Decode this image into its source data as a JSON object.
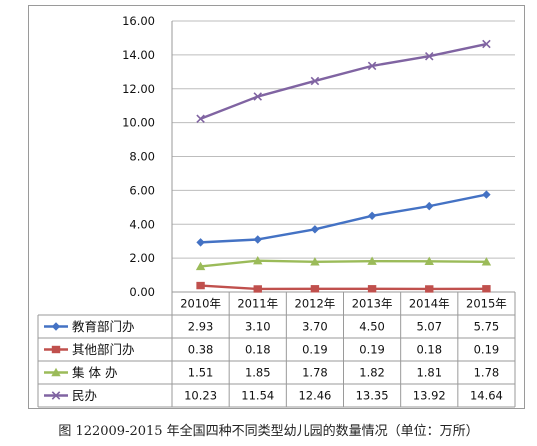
{
  "caption": "图 122009-2015 年全国四种不同类型幼儿园的数量情况（单位：万所）",
  "chart_data": {
    "type": "line",
    "title": "",
    "xlabel": "",
    "ylabel": "",
    "categories": [
      "2010年",
      "2011年",
      "2012年",
      "2013年",
      "2014年",
      "2015年"
    ],
    "ylim": [
      0,
      16
    ],
    "yticks": [
      "0.00",
      "2.00",
      "4.00",
      "6.00",
      "8.00",
      "10.00",
      "12.00",
      "14.00",
      "16.00"
    ],
    "grid": true,
    "legend_placement": "table-left",
    "series": [
      {
        "name": "教育部门办",
        "color": "#4472C4",
        "marker": "diamond",
        "values": [
          2.93,
          3.1,
          3.7,
          4.5,
          5.07,
          5.75
        ],
        "labels": [
          "2.93",
          "3.10",
          "3.70",
          "4.50",
          "5.07",
          "5.75"
        ]
      },
      {
        "name": "其他部门办",
        "color": "#C0504D",
        "marker": "square",
        "values": [
          0.38,
          0.18,
          0.19,
          0.19,
          0.18,
          0.19
        ],
        "labels": [
          "0.38",
          "0.18",
          "0.19",
          "0.19",
          "0.18",
          "0.19"
        ]
      },
      {
        "name": "集 体 办",
        "color": "#9BBB59",
        "marker": "triangle",
        "values": [
          1.51,
          1.85,
          1.78,
          1.82,
          1.81,
          1.78
        ],
        "labels": [
          "1.51",
          "1.85",
          "1.78",
          "1.82",
          "1.81",
          "1.78"
        ]
      },
      {
        "name": "民办",
        "color": "#8064A2",
        "marker": "x",
        "values": [
          10.23,
          11.54,
          12.46,
          13.35,
          13.92,
          14.64
        ],
        "labels": [
          "10.23",
          "11.54",
          "12.46",
          "13.35",
          "13.92",
          "14.64"
        ]
      }
    ]
  }
}
